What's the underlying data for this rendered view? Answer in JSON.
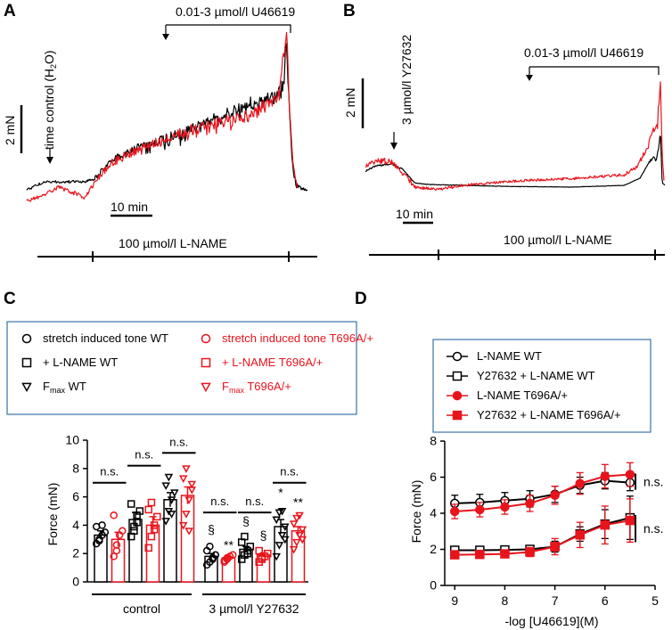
{
  "colors": {
    "wt": "#000000",
    "mut": "#e8141c",
    "legend_border": "#3a73a8"
  },
  "panels": {
    "A": {
      "label": "A",
      "agonist_label": "0.01-3 µmol/l U46619",
      "time_control_label": "time control (H",
      "time_control_sub": "2",
      "time_control_end": "O)",
      "scale_force": "2 mN",
      "scale_time": "10 min",
      "lname_label": "100 µmol/l L-NAME"
    },
    "B": {
      "label": "B",
      "y27632_label": "3 µmol/l Y27632",
      "agonist_label": "0.01-3 µmol/l U46619",
      "scale_force": "2 mN",
      "scale_time": "10 min",
      "lname_label": "100 µmol/l L-NAME"
    },
    "C": {
      "label": "C",
      "legend": [
        {
          "text": "stretch induced tone WT",
          "symbol": "circle-open",
          "color": "wt"
        },
        {
          "text": "stretch induced tone T696A/+",
          "symbol": "circle-open",
          "color": "mut"
        },
        {
          "text": "+ L-NAME WT",
          "symbol": "square-open",
          "color": "wt"
        },
        {
          "text": "+ L-NAME T696A/+",
          "symbol": "square-open",
          "color": "mut"
        },
        {
          "text": "WT",
          "prefix": "F",
          "sub": "max",
          "symbol": "triangle-down-open",
          "color": "wt"
        },
        {
          "text": "T696A/+",
          "prefix": "F",
          "sub": "max",
          "symbol": "triangle-down-open",
          "color": "mut"
        }
      ],
      "group_labels": [
        "control",
        "3 µmol/l Y27632"
      ],
      "ns_label": "n.s."
    },
    "D": {
      "label": "D",
      "legend": [
        {
          "text": "L-NAME WT",
          "symbol": "circle-open",
          "color": "wt"
        },
        {
          "text": "Y27632 + L-NAME WT",
          "symbol": "square-open",
          "color": "wt"
        },
        {
          "text": "L-NAME T696A/+",
          "symbol": "circle-filled",
          "color": "mut"
        },
        {
          "text": "Y27632 + L-NAME T696A/+",
          "symbol": "square-filled",
          "color": "mut"
        }
      ],
      "ns_label": "n.s."
    }
  },
  "chart_data": [
    {
      "type": "bar",
      "panel": "C",
      "ylabel": "Force (mN)",
      "ylim": [
        0,
        10
      ],
      "yticks": [
        0,
        2,
        4,
        6,
        8,
        10
      ],
      "categories": [
        "stretch tone WT",
        "stretch tone T696A/+",
        "+ L-NAME WT",
        "+ L-NAME T696A/+",
        "Fmax WT",
        "Fmax T696A/+",
        "stretch tone WT (Y27632)",
        "stretch tone T696A/+ (Y27632)",
        "+ L-NAME WT (Y27632)",
        "+ L-NAME T696A/+ (Y27632)",
        "Fmax WT (Y27632)",
        "Fmax T696A/+ (Y27632)"
      ],
      "groups": [
        "control",
        "3 µmol/l Y27632"
      ],
      "bars": [
        {
          "group": 0,
          "genotype": "WT",
          "symbol": "circle",
          "mean": 3.3,
          "sem": 0.3,
          "points": [
            2.7,
            3.0,
            3.3,
            3.5,
            3.9,
            2.9,
            4.0
          ]
        },
        {
          "group": 0,
          "genotype": "T696A/+",
          "symbol": "circle",
          "mean": 3.0,
          "sem": 0.5,
          "points": [
            1.8,
            2.2,
            3.3,
            3.6,
            4.7,
            2.6
          ]
        },
        {
          "group": 0,
          "genotype": "WT",
          "symbol": "square",
          "mean": 4.4,
          "sem": 0.5,
          "points": [
            3.2,
            3.6,
            4.2,
            5.0,
            5.5,
            3.9,
            4.7
          ]
        },
        {
          "group": 0,
          "genotype": "T696A/+",
          "symbol": "square",
          "mean": 4.0,
          "sem": 0.6,
          "points": [
            2.4,
            3.2,
            4.0,
            4.6,
            5.1,
            5.6,
            3.7
          ]
        },
        {
          "group": 0,
          "genotype": "WT",
          "symbol": "triangle",
          "mean": 5.8,
          "sem": 0.5,
          "points": [
            4.3,
            5.0,
            5.8,
            6.3,
            6.8,
            7.4,
            4.8
          ]
        },
        {
          "group": 0,
          "genotype": "T696A/+",
          "symbol": "triangle",
          "mean": 6.1,
          "sem": 0.6,
          "points": [
            4.0,
            4.8,
            5.8,
            6.5,
            7.3,
            8.0,
            3.6,
            6.9
          ]
        },
        {
          "group": 1,
          "genotype": "WT",
          "symbol": "circle",
          "mean": 1.8,
          "sem": 0.2,
          "points": [
            1.2,
            1.4,
            1.7,
            1.9,
            2.2,
            2.5,
            1.6
          ]
        },
        {
          "group": 1,
          "genotype": "T696A/+",
          "symbol": "circle",
          "mean": 1.7,
          "sem": 0.1,
          "points": [
            1.4,
            1.6,
            1.8,
            1.9,
            1.5,
            1.7
          ]
        },
        {
          "group": 1,
          "genotype": "WT",
          "symbol": "square",
          "mean": 2.3,
          "sem": 0.2,
          "points": [
            1.6,
            1.9,
            2.2,
            2.5,
            2.8,
            3.2,
            2.0
          ]
        },
        {
          "group": 1,
          "genotype": "T696A/+",
          "symbol": "square",
          "mean": 1.9,
          "sem": 0.15,
          "points": [
            1.4,
            1.6,
            1.8,
            2.0,
            2.2,
            1.7
          ]
        },
        {
          "group": 1,
          "genotype": "WT",
          "symbol": "triangle",
          "mean": 3.9,
          "sem": 0.5,
          "points": [
            1.8,
            2.6,
            3.3,
            3.9,
            4.4,
            4.9,
            5.0,
            3.0
          ]
        },
        {
          "group": 1,
          "genotype": "T696A/+",
          "symbol": "triangle",
          "mean": 3.6,
          "sem": 0.3,
          "points": [
            2.3,
            2.8,
            3.3,
            3.7,
            4.1,
            4.5,
            4.7,
            3.0
          ]
        }
      ],
      "annotations": [
        {
          "text": "§",
          "bar": 6,
          "y": 3.4
        },
        {
          "text": "**",
          "bar": 7,
          "y": 2.3
        },
        {
          "text": "§",
          "bar": 8,
          "y": 4.0
        },
        {
          "text": "§",
          "bar": 9,
          "y": 3.0
        },
        {
          "text": "*",
          "bar": 10,
          "y": 6.0
        },
        {
          "text": "**",
          "bar": 11,
          "y": 5.3
        }
      ],
      "comparisons": [
        {
          "bars": [
            0,
            1
          ],
          "y": 7.0,
          "text": "n.s."
        },
        {
          "bars": [
            2,
            3
          ],
          "y": 8.2,
          "text": "n.s."
        },
        {
          "bars": [
            4,
            5
          ],
          "y": 9.1,
          "text": "n.s."
        },
        {
          "bars": [
            6,
            7
          ],
          "y": 4.9,
          "text": "n.s."
        },
        {
          "bars": [
            8,
            9
          ],
          "y": 4.9,
          "text": "n.s."
        },
        {
          "bars": [
            10,
            11
          ],
          "y": 7.0,
          "text": "n.s."
        }
      ]
    },
    {
      "type": "line",
      "panel": "D",
      "xlabel": "-log [U46619](M)",
      "ylabel": "Force (mN)",
      "xlim": [
        9.2,
        5.0
      ],
      "ylim": [
        0,
        8
      ],
      "xticks": [
        9,
        8,
        7,
        6,
        5
      ],
      "yticks": [
        0,
        2,
        4,
        6,
        8
      ],
      "x": [
        9,
        8.5,
        8,
        7.5,
        7,
        6.5,
        6,
        5.5
      ],
      "series": [
        {
          "name": "L-NAME WT",
          "color": "wt",
          "marker": "circle-open",
          "values": [
            4.55,
            4.6,
            4.7,
            4.8,
            5.05,
            5.55,
            5.8,
            5.7
          ],
          "err": [
            0.45,
            0.45,
            0.45,
            0.45,
            0.45,
            0.45,
            0.45,
            0.45
          ]
        },
        {
          "name": "Y27632 + L-NAME WT",
          "color": "wt",
          "marker": "square-open",
          "values": [
            1.95,
            1.95,
            1.97,
            2.0,
            2.15,
            2.85,
            3.4,
            3.75
          ],
          "err": [
            0.15,
            0.15,
            0.15,
            0.2,
            0.3,
            0.4,
            0.8,
            1.2
          ]
        },
        {
          "name": "L-NAME T696A/+",
          "color": "mut",
          "marker": "circle-filled",
          "values": [
            4.1,
            4.2,
            4.35,
            4.55,
            5.0,
            5.65,
            6.05,
            6.15
          ],
          "err": [
            0.4,
            0.4,
            0.4,
            0.45,
            0.5,
            0.6,
            0.65,
            0.65
          ]
        },
        {
          "name": "Y27632 + L-NAME T696A/+",
          "color": "mut",
          "marker": "square-filled",
          "values": [
            1.7,
            1.72,
            1.75,
            1.85,
            2.15,
            2.8,
            3.35,
            3.6
          ],
          "err": [
            0.15,
            0.15,
            0.2,
            0.25,
            0.45,
            0.7,
            1.05,
            1.2
          ]
        }
      ]
    }
  ]
}
